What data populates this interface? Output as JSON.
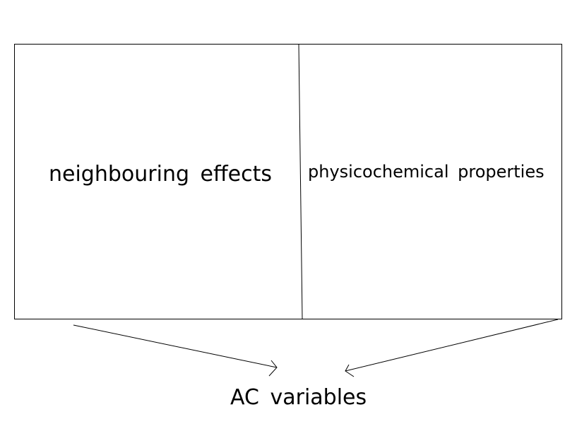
{
  "diagram": {
    "left_box_label": "neighbouring  effects",
    "right_box_label": "physicochemical  properties",
    "target_label": "AC  variables"
  }
}
